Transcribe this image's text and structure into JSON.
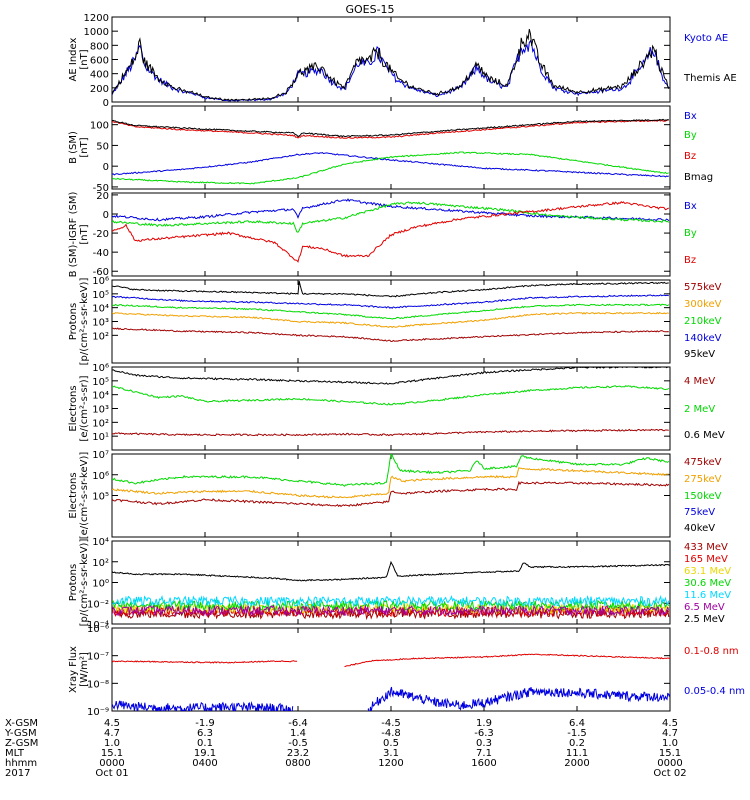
{
  "title": "GOES-15",
  "colors": {
    "black": "#000000",
    "blue": "#0000e0",
    "green": "#00d800",
    "red": "#e00000",
    "orange": "#f0a000",
    "darkred": "#a00000",
    "yellow": "#e8d800",
    "cyan": "#00d8ff",
    "purple": "#a000a0"
  },
  "chart_data": [
    {
      "type": "line",
      "id": "ae",
      "ylabel": [
        "AE Index",
        "[nT]"
      ],
      "yscale": "linear",
      "ylim": [
        0,
        1200
      ],
      "yticks": [
        0,
        200,
        400,
        600,
        800,
        1000,
        1200
      ],
      "yticklabels": [
        "0",
        "200",
        "400",
        "600",
        "800",
        "1000",
        "1200"
      ],
      "series": [
        {
          "name": "Kyoto AE",
          "color": "blue"
        },
        {
          "name": "Themis AE",
          "color": "black"
        }
      ]
    },
    {
      "type": "line",
      "id": "bsm",
      "ylabel": [
        "B (SM)",
        "[nT]"
      ],
      "yscale": "linear",
      "ylim": [
        -55,
        145
      ],
      "yticks": [
        -50,
        0,
        50,
        100
      ],
      "yticklabels": [
        "-50",
        "0",
        "50",
        "100"
      ],
      "series": [
        {
          "name": "Bx",
          "color": "blue"
        },
        {
          "name": "By",
          "color": "green"
        },
        {
          "name": "Bz",
          "color": "red"
        },
        {
          "name": "Bmag",
          "color": "black"
        }
      ]
    },
    {
      "type": "line",
      "id": "bigrf",
      "ylabel": [
        "B (SM)-IGRF (SM)",
        "[nT]"
      ],
      "yscale": "linear",
      "ylim": [
        -65,
        22
      ],
      "yticks": [
        -60,
        -40,
        -20,
        0,
        20
      ],
      "yticklabels": [
        "-60",
        "-40",
        "-20",
        "0",
        "20"
      ],
      "series": [
        {
          "name": "Bx",
          "color": "blue"
        },
        {
          "name": "By",
          "color": "green"
        },
        {
          "name": "Bz",
          "color": "red"
        }
      ]
    },
    {
      "type": "line",
      "id": "protons1",
      "ylabel": [
        "Protons",
        "[p/(cm²-s-sr-keV)]"
      ],
      "yscale": "log",
      "ylim": [
        1,
        1000000
      ],
      "yticks": [
        100,
        1000,
        10000,
        100000,
        1000000
      ],
      "yticklabels": [
        "10²",
        "10³",
        "10⁴",
        "10⁵",
        "10⁶"
      ],
      "series": [
        {
          "name": "575keV",
          "color": "darkred"
        },
        {
          "name": "300keV",
          "color": "orange"
        },
        {
          "name": "210keV",
          "color": "green"
        },
        {
          "name": "140keV",
          "color": "blue"
        },
        {
          "name": "95keV",
          "color": "black"
        }
      ]
    },
    {
      "type": "line",
      "id": "electrons1",
      "ylabel": [
        "Electrons",
        "[e/(cm²-s-sr)]"
      ],
      "yscale": "log",
      "ylim": [
        1,
        1000000
      ],
      "yticks": [
        10,
        100,
        1000,
        10000,
        100000,
        1000000
      ],
      "yticklabels": [
        "10¹",
        "10²",
        "10³",
        "10⁴",
        "10⁵",
        "10⁶"
      ],
      "series": [
        {
          "name": "4 MeV",
          "color": "darkred"
        },
        {
          "name": "2 MeV",
          "color": "green"
        },
        {
          "name": "0.6 MeV",
          "color": "black"
        }
      ]
    },
    {
      "type": "line",
      "id": "electrons2",
      "ylabel": [
        "Electrons",
        "[e/(cm²-s-sr-keV)]"
      ],
      "yscale": "log",
      "ylim": [
        1000,
        10000000
      ],
      "yticks": [
        100000,
        1000000,
        10000000
      ],
      "yticklabels": [
        "10⁵",
        "10⁶",
        "10⁷"
      ],
      "series": [
        {
          "name": "475keV",
          "color": "darkred"
        },
        {
          "name": "275keV",
          "color": "orange"
        },
        {
          "name": "150keV",
          "color": "green"
        },
        {
          "name": "75keV",
          "color": "blue"
        },
        {
          "name": "40keV",
          "color": "black"
        }
      ]
    },
    {
      "type": "line",
      "id": "protons2",
      "ylabel": [
        "Protons",
        "[p/(cm²-s-sr-keV)]"
      ],
      "yscale": "log",
      "ylim": [
        0.0001,
        10000
      ],
      "yticks": [
        0.0001,
        0.01,
        1,
        100,
        10000
      ],
      "yticklabels": [
        "10⁻⁴",
        "10⁻²",
        "10⁰",
        "10²",
        "10⁴"
      ],
      "series": [
        {
          "name": "433 MeV",
          "color": "darkred"
        },
        {
          "name": "165 MeV",
          "color": "red"
        },
        {
          "name": "63.1 MeV",
          "color": "yellow"
        },
        {
          "name": "30.6 MeV",
          "color": "green"
        },
        {
          "name": "11.6 MeV",
          "color": "cyan"
        },
        {
          "name": "6.5 MeV",
          "color": "purple"
        },
        {
          "name": "2.5 MeV",
          "color": "black"
        }
      ]
    },
    {
      "type": "line",
      "id": "xray",
      "ylabel": [
        "Xray Flux",
        "[W/m²]"
      ],
      "yscale": "log",
      "ylim": [
        1e-09,
        1e-06
      ],
      "yticks": [
        1e-09,
        1e-08,
        1e-07,
        1e-06
      ],
      "yticklabels": [
        "10⁻⁹",
        "10⁻⁸",
        "10⁻⁷",
        "10⁻⁶"
      ],
      "series": [
        {
          "name": "0.1-0.8 nm",
          "color": "red"
        },
        {
          "name": "0.05-0.4 nm",
          "color": "blue"
        }
      ]
    }
  ],
  "x_axis": {
    "hours": [
      0,
      4,
      8,
      12,
      16,
      20,
      24
    ],
    "row_labels": [
      "X-GSM",
      "Y-GSM",
      "Z-GSM",
      "MLT",
      "hhmm",
      "2017"
    ],
    "rows": [
      [
        "4.5",
        "-1.9",
        "-6.4",
        "-4.5",
        "1.9",
        "6.4",
        "4.5"
      ],
      [
        "4.7",
        "6.3",
        "1.4",
        "-4.8",
        "-6.3",
        "-1.5",
        "4.7"
      ],
      [
        "1.0",
        "0.1",
        "-0.5",
        "0.5",
        "0.3",
        "0.2",
        "1.0"
      ],
      [
        "15.1",
        "19.1",
        "23.2",
        "3.1",
        "7.1",
        "11.1",
        "15.1"
      ],
      [
        "0000",
        "0400",
        "0800",
        "1200",
        "1600",
        "2000",
        "0000"
      ],
      [
        "Oct 01",
        "",
        "",
        "",
        "",
        "",
        "Oct 02"
      ]
    ]
  }
}
